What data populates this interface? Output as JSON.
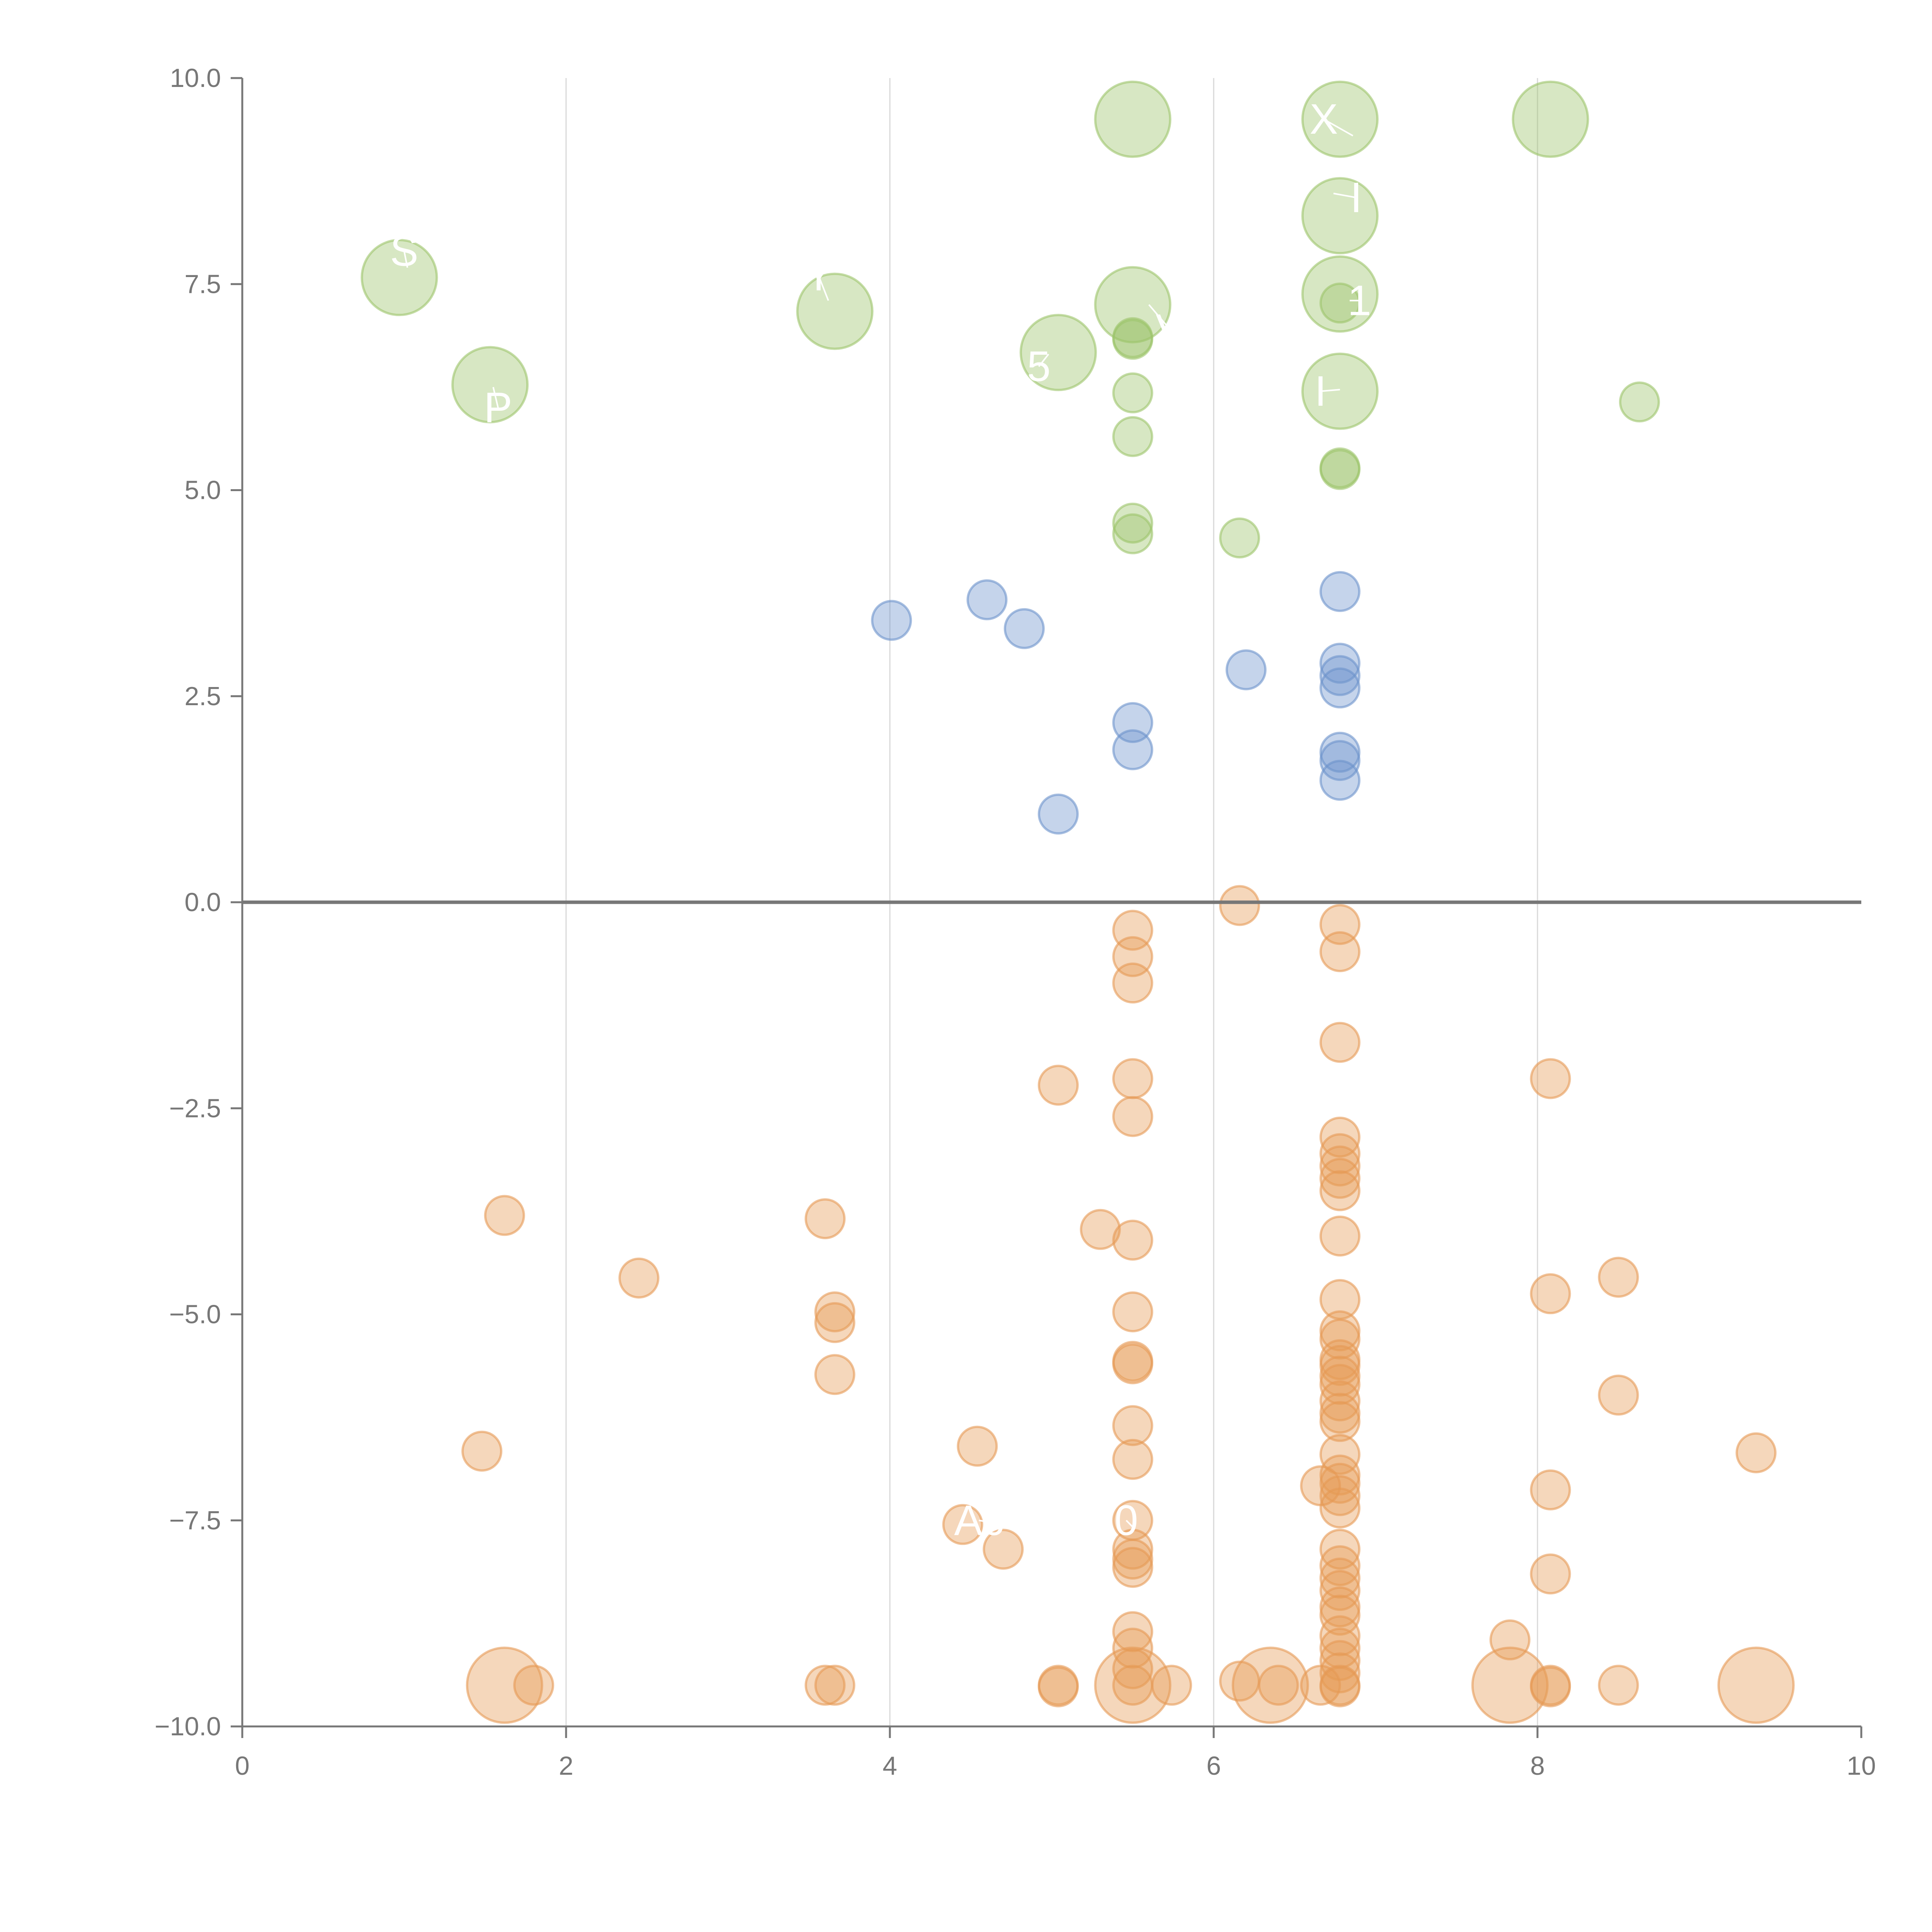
{
  "chart_data": {
    "type": "scatter",
    "title": "",
    "xlabel": "",
    "ylabel": "",
    "xlim": [
      0,
      10
    ],
    "ylim": [
      -10,
      10
    ],
    "x_ticks": [
      0,
      2,
      4,
      6,
      8,
      10
    ],
    "x_tick_labels": [
      "0",
      "2",
      "4",
      "6",
      "8",
      "10"
    ],
    "y_ticks": [
      10,
      7.5,
      5,
      2.5,
      0,
      -2.5,
      -5,
      -7.5,
      -10
    ],
    "y_tick_labels": [
      "10.0",
      "7.5",
      "5.0",
      "2.5",
      "0.0",
      "−2.5",
      "−5.0",
      "−7.5",
      "−10.0"
    ],
    "vertical_grid": [
      2,
      4,
      6,
      8
    ],
    "zero_line": 0,
    "colors": {
      "green": "#9cc46a",
      "blue": "#6d93cc",
      "orange": "#e69a55"
    },
    "series": [
      {
        "name": "green",
        "color": "#9cc46a",
        "points": [
          [
            0.97,
            7.58,
            "L"
          ],
          [
            1.53,
            6.28,
            "L"
          ],
          [
            3.66,
            7.17,
            "L"
          ],
          [
            5.04,
            6.67,
            "L"
          ],
          [
            5.5,
            9.5,
            "L"
          ],
          [
            5.5,
            7.25,
            "L"
          ],
          [
            6.78,
            9.5,
            "L"
          ],
          [
            6.78,
            8.33,
            "L"
          ],
          [
            6.78,
            7.38,
            "L"
          ],
          [
            6.78,
            6.2,
            "L"
          ],
          [
            8.08,
            9.5,
            "L"
          ],
          [
            5.5,
            6.85,
            "S"
          ],
          [
            5.5,
            6.83,
            "S"
          ],
          [
            5.5,
            6.18,
            "S"
          ],
          [
            5.5,
            5.65,
            "S"
          ],
          [
            5.5,
            4.6,
            "S"
          ],
          [
            5.5,
            4.47,
            "S"
          ],
          [
            6.16,
            4.42,
            "S"
          ],
          [
            6.78,
            7.27,
            "S"
          ],
          [
            6.78,
            5.27,
            "S"
          ],
          [
            6.78,
            5.25,
            "S"
          ],
          [
            8.63,
            6.07,
            "S"
          ]
        ]
      },
      {
        "name": "blue",
        "color": "#6d93cc",
        "points": [
          [
            4.01,
            3.42,
            "S"
          ],
          [
            4.6,
            3.67,
            "S"
          ],
          [
            4.83,
            3.32,
            "S"
          ],
          [
            5.04,
            1.07,
            "S"
          ],
          [
            5.5,
            2.18,
            "S"
          ],
          [
            5.5,
            1.85,
            "S"
          ],
          [
            6.2,
            2.82,
            "S"
          ],
          [
            6.78,
            3.77,
            "S"
          ],
          [
            6.78,
            2.9,
            "S"
          ],
          [
            6.78,
            2.75,
            "S"
          ],
          [
            6.78,
            2.6,
            "S"
          ],
          [
            6.78,
            1.82,
            "S"
          ],
          [
            6.78,
            1.72,
            "S"
          ],
          [
            6.78,
            1.48,
            "S"
          ]
        ]
      },
      {
        "name": "orange",
        "color": "#e69a55",
        "points": [
          [
            6.16,
            -0.04,
            "S"
          ],
          [
            5.5,
            -0.34,
            "S"
          ],
          [
            5.5,
            -0.66,
            "S"
          ],
          [
            5.5,
            -0.98,
            "S"
          ],
          [
            6.78,
            -0.27,
            "S"
          ],
          [
            6.78,
            -0.6,
            "S"
          ],
          [
            6.78,
            -1.7,
            "S"
          ],
          [
            5.04,
            -2.22,
            "S"
          ],
          [
            5.5,
            -2.14,
            "S"
          ],
          [
            5.5,
            -2.6,
            "S"
          ],
          [
            8.08,
            -2.14,
            "S"
          ],
          [
            1.62,
            -3.8,
            "S"
          ],
          [
            3.6,
            -3.84,
            "S"
          ],
          [
            5.3,
            -3.97,
            "S"
          ],
          [
            5.5,
            -4.1,
            "S"
          ],
          [
            2.45,
            -4.56,
            "S"
          ],
          [
            3.66,
            -4.97,
            "S"
          ],
          [
            3.66,
            -5.1,
            "S"
          ],
          [
            3.66,
            -5.73,
            "S"
          ],
          [
            5.5,
            -4.97,
            "S"
          ],
          [
            5.5,
            -5.57,
            "S"
          ],
          [
            5.5,
            -5.6,
            "S"
          ],
          [
            5.5,
            -6.35,
            "S"
          ],
          [
            5.5,
            -6.76,
            "S"
          ],
          [
            1.48,
            -6.66,
            "S"
          ],
          [
            4.54,
            -6.6,
            "S"
          ],
          [
            4.45,
            -7.55,
            "S"
          ],
          [
            4.7,
            -7.85,
            "S"
          ],
          [
            5.5,
            -7.5,
            "S"
          ],
          [
            5.5,
            -7.85,
            "S"
          ],
          [
            5.5,
            -7.97,
            "S"
          ],
          [
            5.5,
            -8.07,
            "S"
          ],
          [
            5.5,
            -8.85,
            "S"
          ],
          [
            5.5,
            -9.05,
            "S"
          ],
          [
            5.5,
            -9.3,
            "S"
          ],
          [
            5.5,
            -9.5,
            "S"
          ],
          [
            6.78,
            -2.85,
            "S"
          ],
          [
            6.78,
            -3.05,
            "S"
          ],
          [
            6.78,
            -3.2,
            "S"
          ],
          [
            6.78,
            -3.35,
            "S"
          ],
          [
            6.78,
            -3.5,
            "S"
          ],
          [
            6.78,
            -4.05,
            "S"
          ],
          [
            6.78,
            -4.82,
            "S"
          ],
          [
            6.78,
            -5.2,
            "S"
          ],
          [
            6.78,
            -5.3,
            "S"
          ],
          [
            6.78,
            -5.55,
            "S"
          ],
          [
            6.78,
            -5.62,
            "S"
          ],
          [
            6.78,
            -5.75,
            "S"
          ],
          [
            6.78,
            -5.85,
            "S"
          ],
          [
            6.78,
            -6.05,
            "S"
          ],
          [
            6.78,
            -6.2,
            "S"
          ],
          [
            6.78,
            -6.3,
            "S"
          ],
          [
            6.78,
            -6.7,
            "S"
          ],
          [
            6.78,
            -6.95,
            "S"
          ],
          [
            6.78,
            -7.05,
            "S"
          ],
          [
            6.78,
            -7.2,
            "S"
          ],
          [
            6.78,
            -7.35,
            "S"
          ],
          [
            6.66,
            -7.08,
            "S"
          ],
          [
            6.78,
            -7.85,
            "S"
          ],
          [
            6.78,
            -8.05,
            "S"
          ],
          [
            6.78,
            -8.2,
            "S"
          ],
          [
            6.78,
            -8.35,
            "S"
          ],
          [
            6.78,
            -8.55,
            "S"
          ],
          [
            6.78,
            -8.65,
            "S"
          ],
          [
            6.78,
            -8.9,
            "S"
          ],
          [
            6.78,
            -9.05,
            "S"
          ],
          [
            6.78,
            -9.2,
            "S"
          ],
          [
            6.78,
            -9.35,
            "S"
          ],
          [
            6.78,
            -9.5,
            "S"
          ],
          [
            8.08,
            -4.75,
            "S"
          ],
          [
            8.08,
            -7.13,
            "S"
          ],
          [
            8.08,
            -8.15,
            "S"
          ],
          [
            8.5,
            -4.55,
            "S"
          ],
          [
            8.5,
            -5.98,
            "S"
          ],
          [
            9.35,
            -6.68,
            "S"
          ],
          [
            7.83,
            -8.95,
            "S"
          ],
          [
            1.62,
            -9.5,
            "L"
          ],
          [
            1.8,
            -9.5,
            "S"
          ],
          [
            3.6,
            -9.5,
            "S"
          ],
          [
            3.66,
            -9.5,
            "S"
          ],
          [
            5.04,
            -9.5,
            "S"
          ],
          [
            5.04,
            -9.52,
            "S"
          ],
          [
            5.5,
            -9.5,
            "L"
          ],
          [
            5.74,
            -9.5,
            "S"
          ],
          [
            6.16,
            -9.45,
            "S"
          ],
          [
            6.35,
            -9.5,
            "L"
          ],
          [
            6.4,
            -9.5,
            "S"
          ],
          [
            6.66,
            -9.5,
            "S"
          ],
          [
            6.78,
            -9.52,
            "S"
          ],
          [
            7.83,
            -9.5,
            "L"
          ],
          [
            8.08,
            -9.5,
            "S"
          ],
          [
            8.08,
            -9.52,
            "S"
          ],
          [
            8.5,
            -9.5,
            "S"
          ],
          [
            9.35,
            -9.5,
            "L"
          ]
        ]
      }
    ],
    "annotations": [
      {
        "text": "S",
        "x": 1.0,
        "y": 7.9,
        "lx": 1.02,
        "ly": 7.7
      },
      {
        "text": "P",
        "x": 1.58,
        "y": 6.0,
        "lx": 1.55,
        "ly": 6.25
      },
      {
        "text": "Y",
        "x": 3.56,
        "y": 7.6,
        "lx": 3.62,
        "ly": 7.3
      },
      {
        "text": "5",
        "x": 4.92,
        "y": 6.5,
        "lx": 4.98,
        "ly": 6.65
      },
      {
        "text": "X",
        "x": 6.68,
        "y": 9.5,
        "lx": 6.86,
        "ly": 9.3
      },
      {
        "text": "I",
        "x": 6.88,
        "y": 8.55,
        "lx": 6.74,
        "ly": 8.6
      },
      {
        "text": "1",
        "x": 6.9,
        "y": 7.3,
        "lx": 6.84,
        "ly": 7.3
      },
      {
        "text": "I",
        "x": 6.66,
        "y": 6.2,
        "lx": 6.78,
        "ly": 6.22
      },
      {
        "text": "V",
        "x": 5.73,
        "y": 6.95,
        "lx": 5.6,
        "ly": 7.25
      },
      {
        "text": "Ac",
        "x": 4.55,
        "y": -7.5,
        "lx": 4.7,
        "ly": -7.55
      },
      {
        "text": "0",
        "x": 5.46,
        "y": -7.5,
        "lx": 5.5,
        "ly": -7.58
      }
    ]
  }
}
